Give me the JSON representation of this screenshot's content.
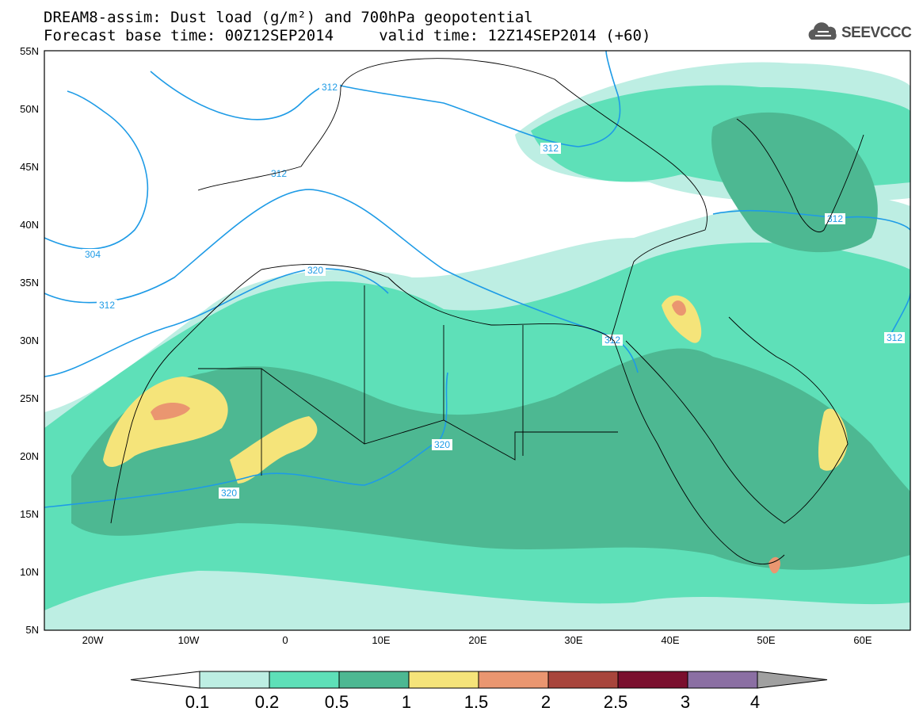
{
  "header": {
    "line1": "DREAM8-assim: Dust load (g/m²) and 700hPa geopotential",
    "line2": "Forecast base time: 00Z12SEP2014     valid time: 12Z14SEP2014 (+60)",
    "logo_text": "SEEVCCC"
  },
  "map": {
    "lon_range": [
      -25,
      65
    ],
    "lat_range": [
      5,
      55
    ],
    "lat_ticks": [
      "55N",
      "50N",
      "45N",
      "40N",
      "35N",
      "30N",
      "25N",
      "20N",
      "15N",
      "10N",
      "5N"
    ],
    "lon_ticks": [
      "20W",
      "10W",
      "0",
      "10E",
      "20E",
      "30E",
      "40E",
      "50E",
      "60E"
    ],
    "contour_labels": [
      "312",
      "312",
      "312",
      "312",
      "304",
      "312",
      "320",
      "312",
      "312",
      "320",
      "320"
    ],
    "contour_color": "#1e9be6"
  },
  "legend": {
    "labels": [
      "0.1",
      "0.2",
      "0.5",
      "1",
      "1.5",
      "2",
      "2.5",
      "3",
      "4"
    ],
    "colors": [
      "#bdeee3",
      "#5ee0b8",
      "#4db892",
      "#f5e47a",
      "#ea9670",
      "#a8453c",
      "#7a0f2e",
      "#8b6fa3",
      "#a0a0a0"
    ]
  }
}
